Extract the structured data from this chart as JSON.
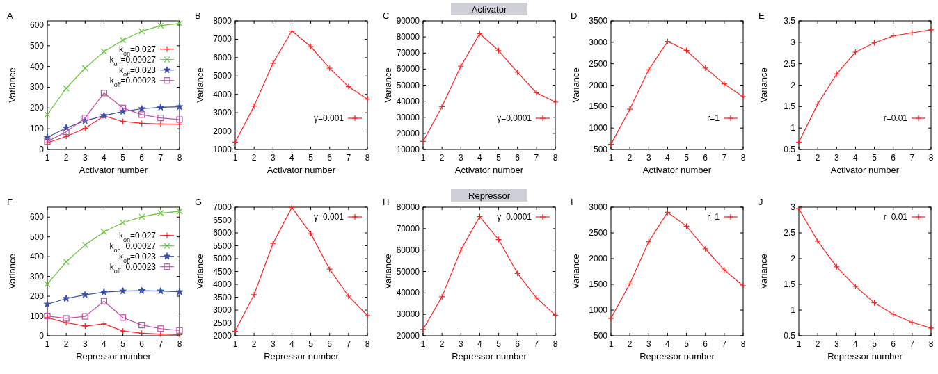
{
  "chart_data": [
    {
      "type": "line",
      "title": "A",
      "xlabel": "Activator number",
      "ylabel": "Variance",
      "x": [
        1,
        2,
        3,
        4,
        5,
        6,
        7,
        8
      ],
      "xlim": [
        1,
        8
      ],
      "xticks": [
        1,
        2,
        3,
        4,
        5,
        6,
        7,
        8
      ],
      "ylim": [
        0,
        620
      ],
      "yticks": [
        0,
        100,
        200,
        300,
        400,
        500,
        600
      ],
      "legend": "right",
      "series": [
        {
          "name": "k$_{on}$=0.027",
          "color": "#ff2020",
          "marker": "cross",
          "values": [
            32,
            63,
            102,
            162,
            135,
            126,
            123,
            122
          ]
        },
        {
          "name": "k$_{on}$=0.00027",
          "color": "#66c23a",
          "marker": "x",
          "values": [
            168,
            295,
            392,
            472,
            527,
            570,
            597,
            608
          ]
        },
        {
          "name": "k$_{off}$=0.023",
          "color": "#3a4fa8",
          "marker": "star",
          "values": [
            58,
            104,
            138,
            163,
            183,
            196,
            203,
            206
          ]
        },
        {
          "name": "k$_{off}$=0.00023",
          "color": "#c04ca8",
          "marker": "square",
          "values": [
            38,
            85,
            152,
            272,
            200,
            168,
            152,
            144
          ]
        }
      ]
    },
    {
      "type": "line",
      "title": "B",
      "xlabel": "Activator number",
      "ylabel": "Variance",
      "x": [
        1,
        2,
        3,
        4,
        5,
        6,
        7,
        8
      ],
      "xlim": [
        1,
        8
      ],
      "xticks": [
        1,
        2,
        3,
        4,
        5,
        6,
        7,
        8
      ],
      "ylim": [
        1000,
        8000
      ],
      "yticks": [
        1000,
        2000,
        3000,
        4000,
        5000,
        6000,
        7000,
        8000
      ],
      "legend": "bottom right",
      "series": [
        {
          "name": "γ=0.001",
          "color": "#ff2020",
          "marker": "cross",
          "values": [
            1400,
            3360,
            5700,
            7450,
            6600,
            5420,
            4420,
            3740
          ]
        }
      ]
    },
    {
      "type": "line",
      "title": "C",
      "subtitle": "Activator",
      "xlabel": "Activator number",
      "ylabel": "Variance",
      "x": [
        1,
        2,
        3,
        4,
        5,
        6,
        7,
        8
      ],
      "xlim": [
        1,
        8
      ],
      "xticks": [
        1,
        2,
        3,
        4,
        5,
        6,
        7,
        8
      ],
      "ylim": [
        10000,
        90000
      ],
      "yticks": [
        10000,
        20000,
        30000,
        40000,
        50000,
        60000,
        70000,
        80000,
        90000
      ],
      "legend": "bottom right",
      "series": [
        {
          "name": "γ=0.0001",
          "color": "#ff2020",
          "marker": "cross",
          "values": [
            15000,
            36600,
            61800,
            82000,
            71500,
            58000,
            45300,
            39500
          ]
        }
      ]
    },
    {
      "type": "line",
      "title": "D",
      "xlabel": "Activator number",
      "ylabel": "Variance",
      "x": [
        1,
        2,
        3,
        4,
        5,
        6,
        7,
        8
      ],
      "xlim": [
        1,
        8
      ],
      "xticks": [
        1,
        2,
        3,
        4,
        5,
        6,
        7,
        8
      ],
      "ylim": [
        500,
        3500
      ],
      "yticks": [
        500,
        1000,
        1500,
        2000,
        2500,
        3000,
        3500
      ],
      "legend": "bottom right",
      "series": [
        {
          "name": "r=1",
          "color": "#ff2020",
          "marker": "cross",
          "values": [
            620,
            1440,
            2360,
            3020,
            2810,
            2400,
            2030,
            1730
          ]
        }
      ]
    },
    {
      "type": "line",
      "title": "E",
      "xlabel": "Activator number",
      "ylabel": "Variance",
      "x": [
        1,
        2,
        3,
        4,
        5,
        6,
        7,
        8
      ],
      "xlim": [
        1,
        8
      ],
      "xticks": [
        1,
        2,
        3,
        4,
        5,
        6,
        7,
        8
      ],
      "ylim": [
        0.5,
        3.5
      ],
      "yticks": [
        0.5,
        1,
        1.5,
        2,
        2.5,
        3,
        3.5
      ],
      "legend": "bottom right",
      "series": [
        {
          "name": "r=0.01",
          "color": "#ff2020",
          "marker": "cross",
          "values": [
            0.67,
            1.56,
            2.26,
            2.77,
            2.99,
            3.15,
            3.22,
            3.29
          ]
        }
      ]
    },
    {
      "type": "line",
      "title": "F",
      "xlabel": "Repressor number",
      "ylabel": "Variance",
      "x": [
        1,
        2,
        3,
        4,
        5,
        6,
        7,
        8
      ],
      "xlim": [
        1,
        8
      ],
      "xticks": [
        1,
        2,
        3,
        4,
        5,
        6,
        7,
        8
      ],
      "ylim": [
        0,
        650
      ],
      "yticks": [
        0,
        100,
        200,
        300,
        400,
        500,
        600
      ],
      "legend": "right",
      "series": [
        {
          "name": "k$_{on}$=0.027",
          "color": "#ff2020",
          "marker": "cross",
          "values": [
            92,
            66,
            49,
            60,
            24,
            13,
            8,
            5
          ]
        },
        {
          "name": "k$_{on}$=0.00027",
          "color": "#66c23a",
          "marker": "x",
          "values": [
            261,
            374,
            459,
            525,
            572,
            601,
            620,
            629
          ]
        },
        {
          "name": "k$_{off}$=0.023",
          "color": "#3a4fa8",
          "marker": "star",
          "values": [
            159,
            188,
            207,
            221,
            226,
            228,
            226,
            222
          ]
        },
        {
          "name": "k$_{off}$=0.00023",
          "color": "#c04ca8",
          "marker": "square",
          "values": [
            100,
            88,
            98,
            175,
            92,
            54,
            36,
            27
          ]
        }
      ]
    },
    {
      "type": "line",
      "title": "G",
      "xlabel": "Repressor number",
      "ylabel": "Variance",
      "x": [
        1,
        2,
        3,
        4,
        5,
        6,
        7,
        8
      ],
      "xlim": [
        1,
        8
      ],
      "xticks": [
        1,
        2,
        3,
        4,
        5,
        6,
        7,
        8
      ],
      "ylim": [
        2000,
        7000
      ],
      "yticks": [
        2000,
        2500,
        3000,
        3500,
        4000,
        4500,
        5000,
        5500,
        6000,
        6500,
        7000
      ],
      "legend": "top right",
      "series": [
        {
          "name": "γ=0.001",
          "color": "#ff2020",
          "marker": "cross",
          "values": [
            2180,
            3600,
            5590,
            6990,
            5970,
            4590,
            3540,
            2790
          ]
        }
      ]
    },
    {
      "type": "line",
      "title": "H",
      "subtitle": "Repressor",
      "xlabel": "Repressor number",
      "ylabel": "Variance",
      "x": [
        1,
        2,
        3,
        4,
        5,
        6,
        7,
        8
      ],
      "xlim": [
        1,
        8
      ],
      "xticks": [
        1,
        2,
        3,
        4,
        5,
        6,
        7,
        8
      ],
      "ylim": [
        20000,
        80000
      ],
      "yticks": [
        20000,
        30000,
        40000,
        50000,
        60000,
        70000,
        80000
      ],
      "legend": "top right",
      "series": [
        {
          "name": "γ=0.0001",
          "color": "#ff2020",
          "marker": "cross",
          "values": [
            23000,
            38200,
            60000,
            75600,
            64900,
            49100,
            37700,
            29600
          ]
        }
      ]
    },
    {
      "type": "line",
      "title": "I",
      "xlabel": "Repressor number",
      "ylabel": "Variance",
      "x": [
        1,
        2,
        3,
        4,
        5,
        6,
        7,
        8
      ],
      "xlim": [
        1,
        8
      ],
      "xticks": [
        1,
        2,
        3,
        4,
        5,
        6,
        7,
        8
      ],
      "ylim": [
        500,
        3000
      ],
      "yticks": [
        500,
        1000,
        1500,
        2000,
        2500,
        3000
      ],
      "legend": "top right",
      "series": [
        {
          "name": "r=1",
          "color": "#ff2020",
          "marker": "cross",
          "values": [
            840,
            1510,
            2330,
            2900,
            2630,
            2190,
            1780,
            1470
          ]
        }
      ]
    },
    {
      "type": "line",
      "title": "J",
      "xlabel": "Repressor number",
      "ylabel": "Variance",
      "x": [
        1,
        2,
        3,
        4,
        5,
        6,
        7,
        8
      ],
      "xlim": [
        1,
        8
      ],
      "xticks": [
        1,
        2,
        3,
        4,
        5,
        6,
        7,
        8
      ],
      "ylim": [
        0.5,
        3
      ],
      "yticks": [
        0.5,
        1,
        1.5,
        2,
        2.5,
        3
      ],
      "legend": "top right",
      "series": [
        {
          "name": "r=0.01",
          "color": "#ff2020",
          "marker": "cross",
          "values": [
            2.97,
            2.34,
            1.84,
            1.46,
            1.14,
            0.92,
            0.76,
            0.65
          ]
        }
      ]
    }
  ]
}
